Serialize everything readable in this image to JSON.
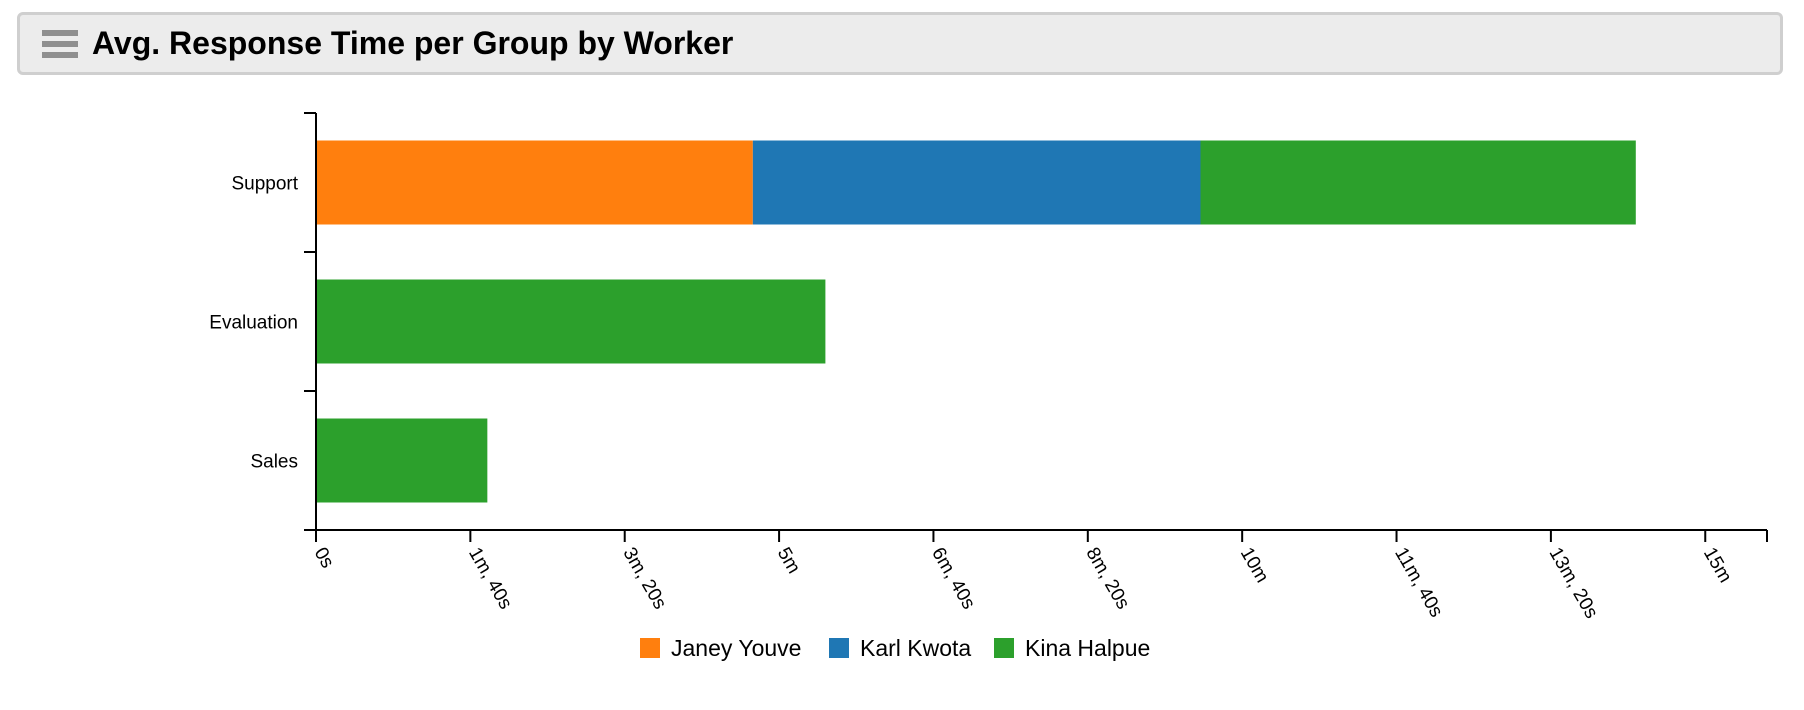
{
  "widget": {
    "title": "Avg. Response Time per Group by Worker",
    "menu_icon": "hamburger-menu-icon"
  },
  "chart_data": {
    "type": "bar",
    "orientation": "horizontal",
    "stacked": true,
    "title": "Avg. Response Time per Group by Worker",
    "xlabel": "",
    "ylabel": "",
    "value_unit": "seconds",
    "categories": [
      "Support",
      "Evaluation",
      "Sales"
    ],
    "series": [
      {
        "name": "Janey Youve",
        "color": "#ff7f0e",
        "values": [
          283,
          0,
          0
        ]
      },
      {
        "name": "Karl Kwota",
        "color": "#1f77b4",
        "values": [
          290,
          0,
          0
        ]
      },
      {
        "name": "Kina Halpue",
        "color": "#2ca02c",
        "values": [
          282,
          330,
          111
        ]
      }
    ],
    "xlim": [
      0,
      940
    ],
    "xticks": [
      {
        "value": 0,
        "label": "0s"
      },
      {
        "value": 100,
        "label": "1m, 40s"
      },
      {
        "value": 200,
        "label": "3m, 20s"
      },
      {
        "value": 300,
        "label": "5m"
      },
      {
        "value": 400,
        "label": "6m, 40s"
      },
      {
        "value": 500,
        "label": "8m, 20s"
      },
      {
        "value": 600,
        "label": "10m"
      },
      {
        "value": 700,
        "label": "11m, 40s"
      },
      {
        "value": 800,
        "label": "13m, 20s"
      },
      {
        "value": 900,
        "label": "15m"
      }
    ],
    "grid": false,
    "legend_position": "bottom-center"
  }
}
